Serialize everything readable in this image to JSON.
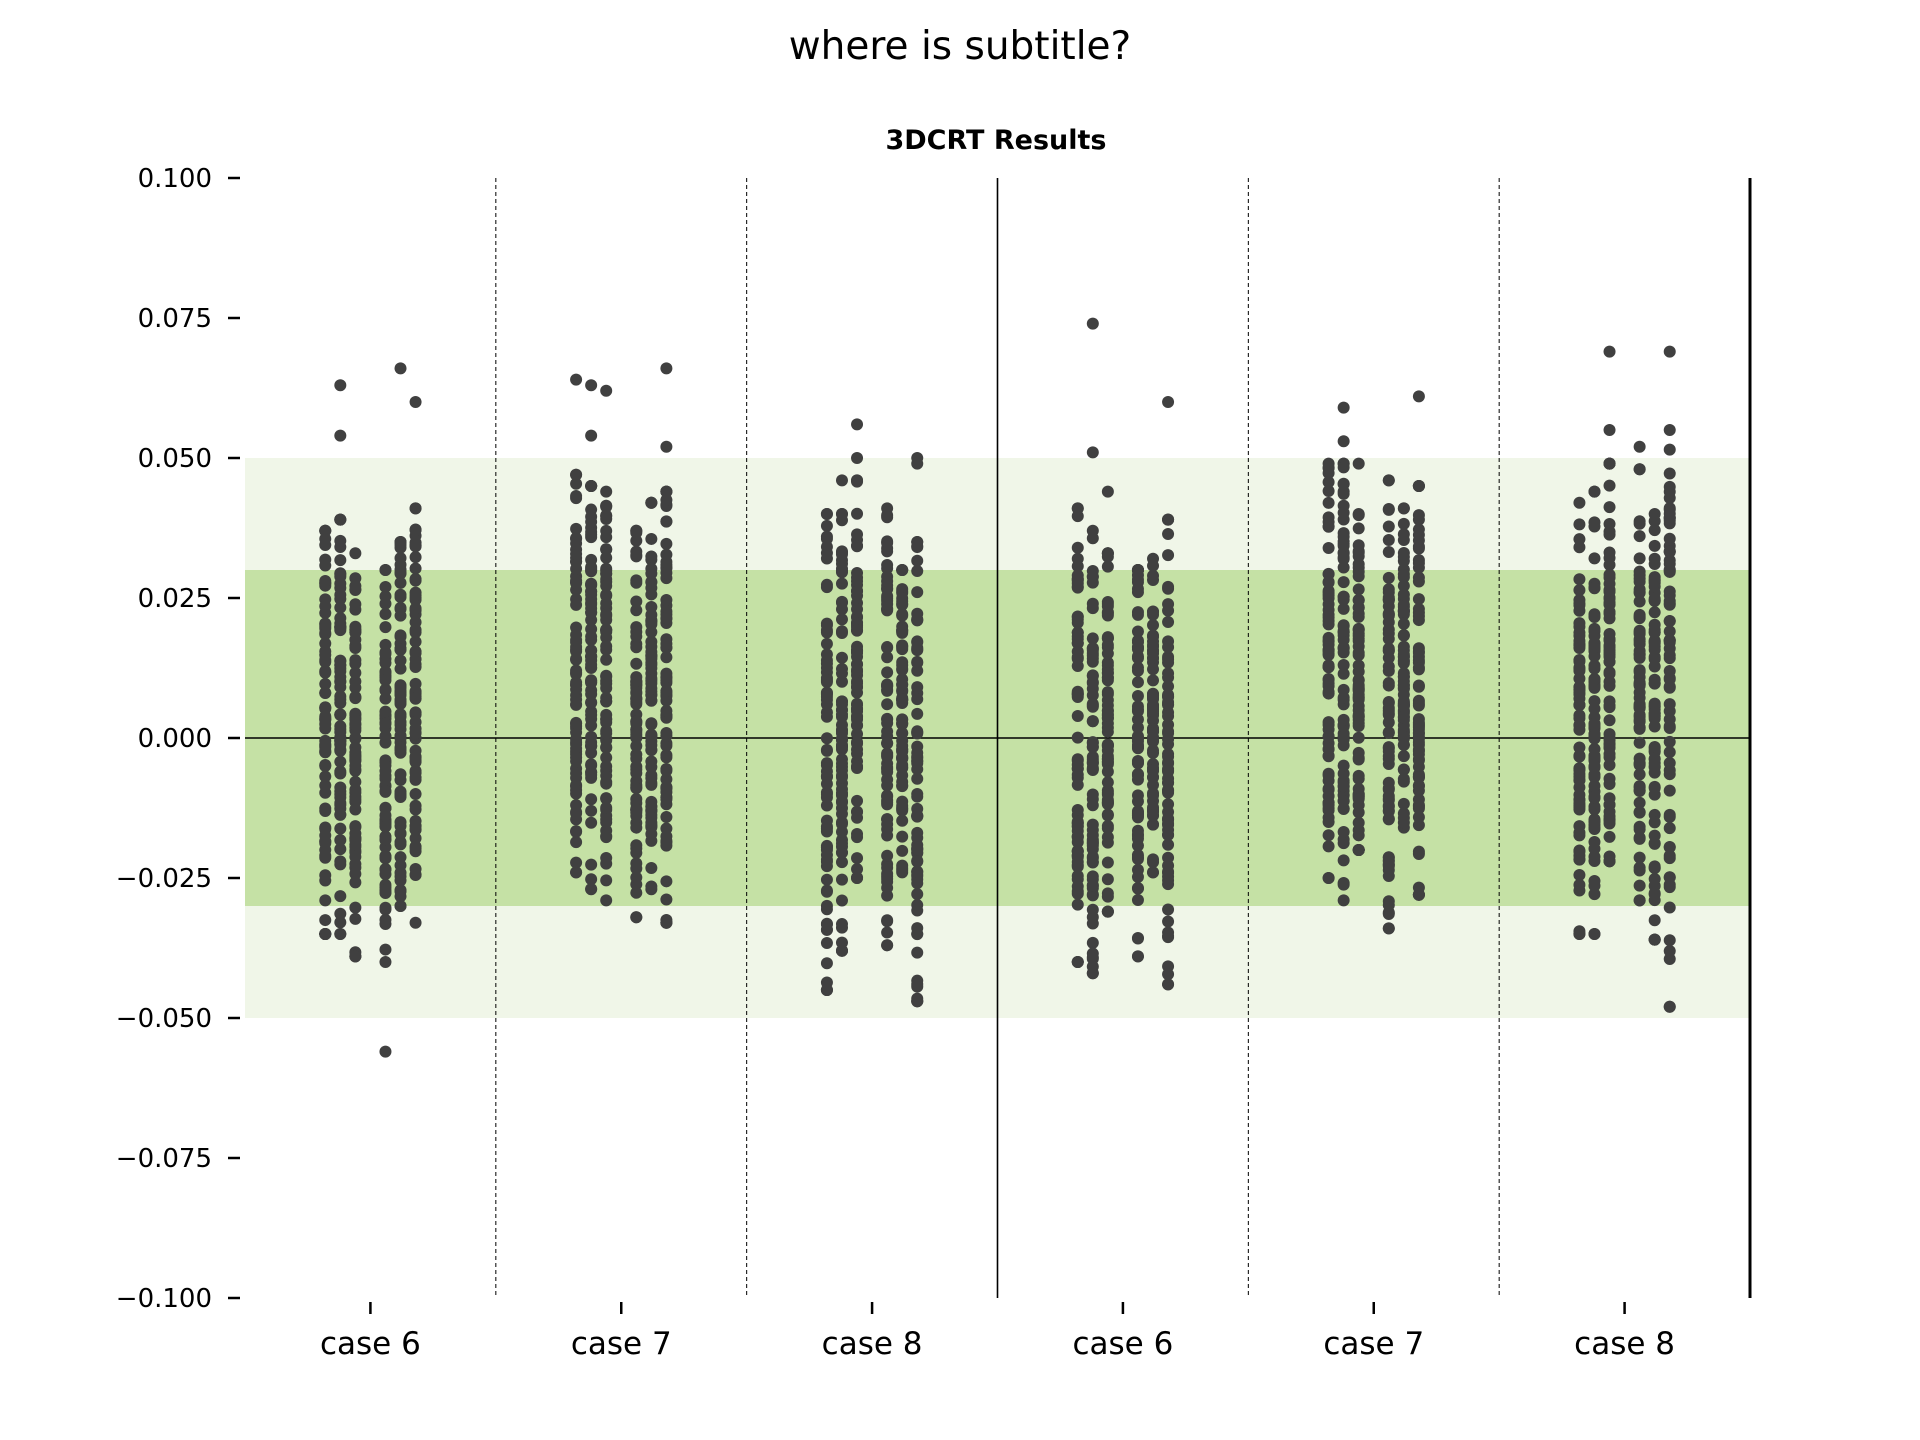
{
  "suptitle": "where is subtitle?",
  "chart_data": {
    "type": "scatter",
    "title": "3DCRT Results",
    "categories": [
      "case 6",
      "case 7",
      "case 8",
      "case 6",
      "case 7",
      "case 8"
    ],
    "ylim": [
      -0.1,
      0.1
    ],
    "yticks": [
      0.1,
      0.075,
      0.05,
      0.025,
      0.0,
      -0.025,
      -0.05,
      -0.075,
      -0.1
    ],
    "ytick_labels": [
      "0.100",
      "0.075",
      "0.050",
      "0.025",
      "0.000",
      "−0.025",
      "−0.050",
      "−0.075",
      "−0.100"
    ],
    "bands": [
      {
        "from": -0.05,
        "to": 0.05,
        "color": "#f0f6e8"
      },
      {
        "from": -0.03,
        "to": 0.03,
        "color": "#c5e1a5"
      }
    ],
    "zero_line": 0.0,
    "grid": false,
    "point_color": "#404040",
    "groups": [
      {
        "label": "case 6",
        "columns": [
          {
            "x_offset": -0.18,
            "min": -0.035,
            "max": 0.037,
            "outliers": []
          },
          {
            "x_offset": -0.12,
            "min": -0.035,
            "max": 0.039,
            "outliers": [
              0.054,
              0.063
            ]
          },
          {
            "x_offset": -0.06,
            "min": -0.039,
            "max": 0.033,
            "outliers": []
          },
          {
            "x_offset": 0.06,
            "min": -0.04,
            "max": 0.03,
            "outliers": [
              -0.056
            ]
          },
          {
            "x_offset": 0.12,
            "min": -0.03,
            "max": 0.035,
            "outliers": [
              0.066
            ]
          },
          {
            "x_offset": 0.18,
            "min": -0.033,
            "max": 0.041,
            "outliers": [
              0.06
            ]
          }
        ]
      },
      {
        "label": "case 7",
        "columns": [
          {
            "x_offset": -0.18,
            "min": -0.024,
            "max": 0.047,
            "outliers": [
              0.064
            ]
          },
          {
            "x_offset": -0.12,
            "min": -0.027,
            "max": 0.045,
            "outliers": [
              0.054,
              0.063
            ]
          },
          {
            "x_offset": -0.06,
            "min": -0.029,
            "max": 0.044,
            "outliers": [
              0.062
            ]
          },
          {
            "x_offset": 0.06,
            "min": -0.032,
            "max": 0.037,
            "outliers": []
          },
          {
            "x_offset": 0.12,
            "min": -0.027,
            "max": 0.042,
            "outliers": []
          },
          {
            "x_offset": 0.18,
            "min": -0.033,
            "max": 0.044,
            "outliers": [
              0.052,
              0.066
            ]
          }
        ]
      },
      {
        "label": "case 8",
        "columns": [
          {
            "x_offset": -0.18,
            "min": -0.045,
            "max": 0.04,
            "outliers": []
          },
          {
            "x_offset": -0.12,
            "min": -0.038,
            "max": 0.04,
            "outliers": [
              0.046
            ]
          },
          {
            "x_offset": -0.06,
            "min": -0.025,
            "max": 0.046,
            "outliers": [
              0.05,
              0.056
            ]
          },
          {
            "x_offset": 0.06,
            "min": -0.037,
            "max": 0.041,
            "outliers": []
          },
          {
            "x_offset": 0.12,
            "min": -0.024,
            "max": 0.03,
            "outliers": []
          },
          {
            "x_offset": 0.18,
            "min": -0.047,
            "max": 0.035,
            "outliers": [
              0.049,
              0.05
            ]
          }
        ]
      },
      {
        "label": "case 6",
        "columns": [
          {
            "x_offset": -0.18,
            "min": -0.04,
            "max": 0.041,
            "outliers": []
          },
          {
            "x_offset": -0.12,
            "min": -0.042,
            "max": 0.037,
            "outliers": [
              0.051,
              0.074
            ]
          },
          {
            "x_offset": -0.06,
            "min": -0.031,
            "max": 0.033,
            "outliers": [
              0.044
            ]
          },
          {
            "x_offset": 0.06,
            "min": -0.039,
            "max": 0.03,
            "outliers": []
          },
          {
            "x_offset": 0.12,
            "min": -0.024,
            "max": 0.032,
            "outliers": []
          },
          {
            "x_offset": 0.18,
            "min": -0.044,
            "max": 0.039,
            "outliers": [
              0.06
            ]
          }
        ]
      },
      {
        "label": "case 7",
        "columns": [
          {
            "x_offset": -0.18,
            "min": -0.025,
            "max": 0.049,
            "outliers": []
          },
          {
            "x_offset": -0.12,
            "min": -0.029,
            "max": 0.049,
            "outliers": [
              0.053,
              0.059
            ]
          },
          {
            "x_offset": -0.06,
            "min": -0.02,
            "max": 0.04,
            "outliers": [
              0.049
            ]
          },
          {
            "x_offset": 0.06,
            "min": -0.034,
            "max": 0.046,
            "outliers": []
          },
          {
            "x_offset": 0.12,
            "min": -0.016,
            "max": 0.041,
            "outliers": []
          },
          {
            "x_offset": 0.18,
            "min": -0.028,
            "max": 0.045,
            "outliers": [
              0.061
            ]
          }
        ]
      },
      {
        "label": "case 8",
        "columns": [
          {
            "x_offset": -0.18,
            "min": -0.035,
            "max": 0.042,
            "outliers": []
          },
          {
            "x_offset": -0.12,
            "min": -0.035,
            "max": 0.044,
            "outliers": []
          },
          {
            "x_offset": -0.06,
            "min": -0.022,
            "max": 0.049,
            "outliers": [
              0.055,
              0.069
            ]
          },
          {
            "x_offset": 0.06,
            "min": -0.029,
            "max": 0.048,
            "outliers": [
              0.052
            ]
          },
          {
            "x_offset": 0.12,
            "min": -0.036,
            "max": 0.04,
            "outliers": []
          },
          {
            "x_offset": 0.18,
            "min": -0.048,
            "max": 0.055,
            "outliers": [
              0.069
            ]
          }
        ]
      }
    ]
  }
}
